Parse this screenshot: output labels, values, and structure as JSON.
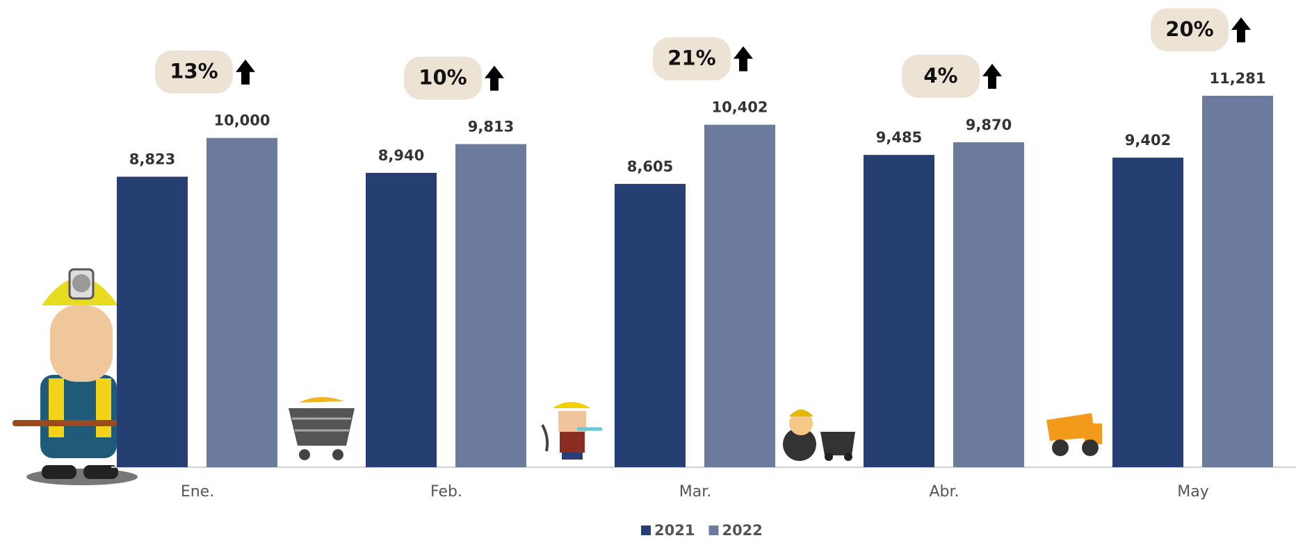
{
  "chart_data": {
    "type": "bar",
    "categories": [
      "Ene.",
      "Feb.",
      "Mar.",
      "Abr.",
      "May"
    ],
    "series": [
      {
        "name": "2021",
        "color": "#253f72",
        "values": [
          8823,
          8940,
          8605,
          9485,
          9402
        ],
        "value_labels": [
          "8,823",
          "8,940",
          "8,605",
          "9,485",
          "9,402"
        ]
      },
      {
        "name": "2022",
        "color": "#6b7a9d",
        "values": [
          10000,
          9813,
          10402,
          9870,
          11281
        ],
        "value_labels": [
          "10,000",
          "9,813",
          "10,402",
          "9,870",
          "11,281"
        ]
      }
    ],
    "annotations": [
      "13%",
      "10%",
      "21%",
      "4%",
      "20%"
    ],
    "ylim": [
      0,
      14000
    ],
    "grid": false,
    "legend": "bottom"
  }
}
